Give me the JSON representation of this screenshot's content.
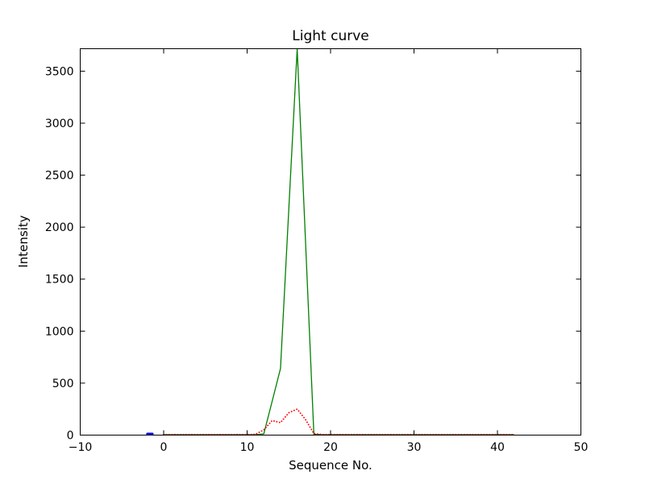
{
  "chart_data": {
    "type": "line",
    "title": "Light curve",
    "xlabel": "Sequence No.",
    "ylabel": "Intensity",
    "xlim": [
      -10,
      50
    ],
    "ylim": [
      0,
      3716
    ],
    "xticks": [
      -10,
      0,
      10,
      20,
      30,
      40,
      50
    ],
    "xtick_labels": [
      "−10",
      "0",
      "10",
      "20",
      "30",
      "40",
      "50"
    ],
    "yticks": [
      0,
      500,
      1000,
      1500,
      2000,
      2500,
      3000,
      3500
    ],
    "ytick_labels": [
      "0",
      "500",
      "1000",
      "1500",
      "2000",
      "2500",
      "3000",
      "3500"
    ],
    "grid": false,
    "legend": null,
    "frame_color": "#000000",
    "background_color": "#ffffff",
    "series": [
      {
        "name": "main-peak-green",
        "color": "#008000",
        "linestyle": "solid",
        "linewidth": 1.3,
        "points": [
          [
            0,
            4
          ],
          [
            2,
            4
          ],
          [
            4,
            4
          ],
          [
            6,
            4
          ],
          [
            8,
            4
          ],
          [
            10,
            4
          ],
          [
            11,
            4
          ],
          [
            12,
            12
          ],
          [
            13,
            325
          ],
          [
            14,
            640
          ],
          [
            15,
            2180
          ],
          [
            16,
            3716
          ],
          [
            17,
            1860
          ],
          [
            18,
            8
          ],
          [
            19,
            4
          ],
          [
            22,
            4
          ],
          [
            26,
            4
          ],
          [
            30,
            4
          ],
          [
            34,
            4
          ],
          [
            38,
            4
          ],
          [
            42,
            4
          ]
        ]
      },
      {
        "name": "secondary-peak-red-dotted",
        "color": "#ff0000",
        "linestyle": "dotted",
        "linewidth": 1.8,
        "points": [
          [
            0,
            6
          ],
          [
            2,
            6
          ],
          [
            4,
            6
          ],
          [
            6,
            6
          ],
          [
            8,
            6
          ],
          [
            10,
            6
          ],
          [
            11,
            8
          ],
          [
            12,
            50
          ],
          [
            13,
            140
          ],
          [
            14,
            120
          ],
          [
            15,
            215
          ],
          [
            16,
            250
          ],
          [
            17,
            150
          ],
          [
            18,
            15
          ],
          [
            19,
            6
          ],
          [
            22,
            6
          ],
          [
            26,
            6
          ],
          [
            30,
            6
          ],
          [
            34,
            6
          ],
          [
            38,
            6
          ],
          [
            42,
            6
          ]
        ]
      },
      {
        "name": "pre-burst-blue",
        "color": "#0000ff",
        "linestyle": "solid",
        "linewidth": 3,
        "points": [
          [
            -1.95,
            12
          ],
          [
            -1.35,
            12
          ]
        ]
      }
    ]
  }
}
